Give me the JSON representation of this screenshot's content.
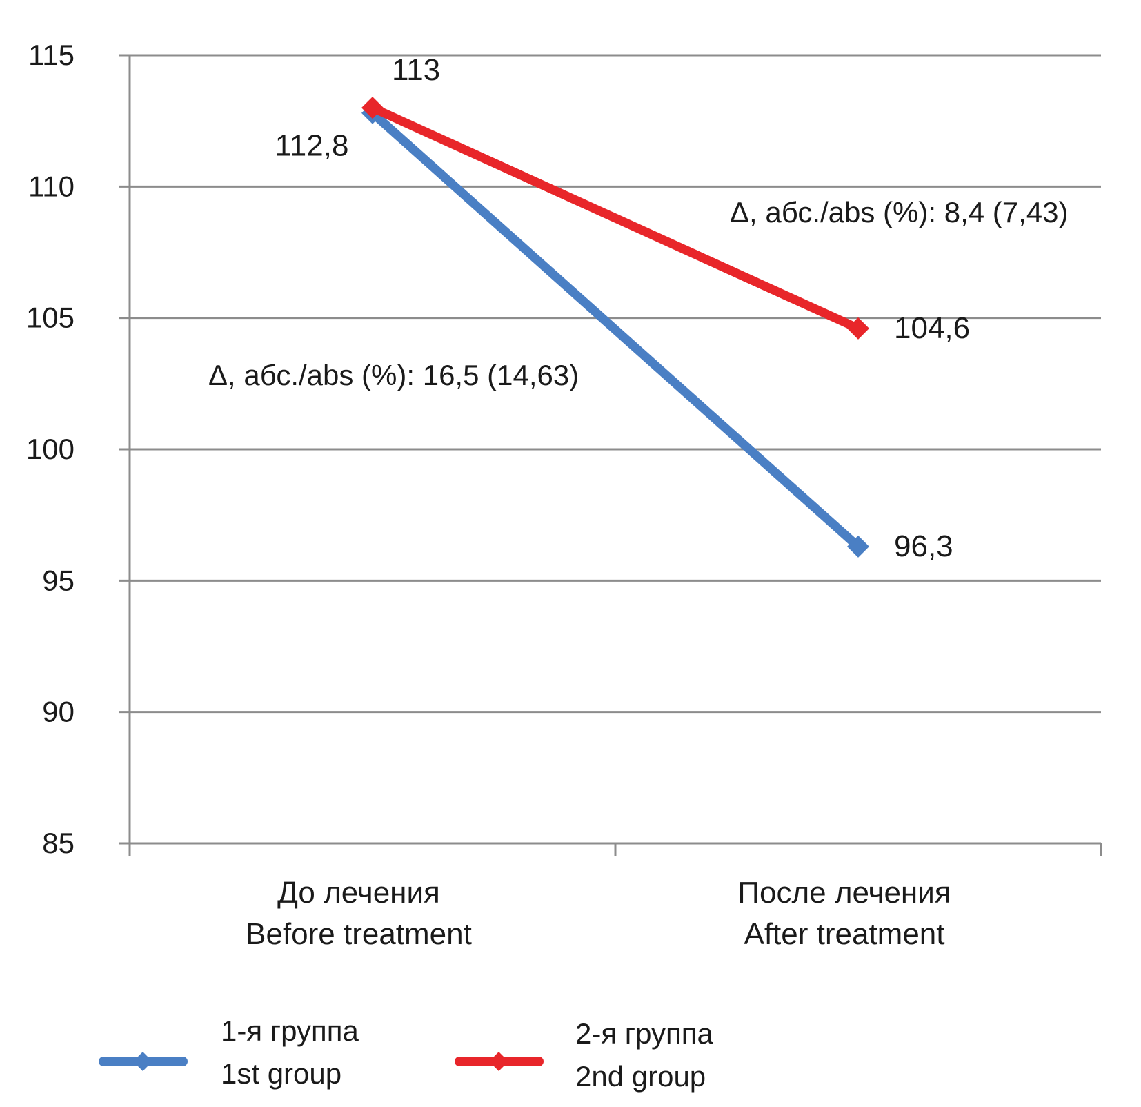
{
  "chart_data": {
    "type": "line",
    "categories": [
      [
        "До лечения",
        "Before treatment"
      ],
      [
        "После лечения",
        "After treatment"
      ]
    ],
    "ylim": [
      85,
      115
    ],
    "yticks": [
      "115",
      "110",
      "105",
      "100",
      "95",
      "90",
      "85"
    ],
    "ytick_values": [
      115,
      110,
      105,
      100,
      95,
      90,
      85
    ],
    "grid": true,
    "legend_position": "bottom",
    "series": [
      {
        "name": [
          "1-я группа",
          "1st group"
        ],
        "color": "#4a7fc4",
        "values": [
          112.8,
          96.3
        ],
        "labels": [
          "112,8",
          "96,3"
        ],
        "delta_annotation": "Δ, абс./abs (%): 16,5 (14,63)"
      },
      {
        "name": [
          "2-я группа",
          "2nd group"
        ],
        "color": "#e8262a",
        "values": [
          113,
          104.6
        ],
        "labels": [
          "113",
          "104,6"
        ],
        "delta_annotation": "Δ, абс./abs (%): 8,4 (7,43)"
      }
    ]
  }
}
